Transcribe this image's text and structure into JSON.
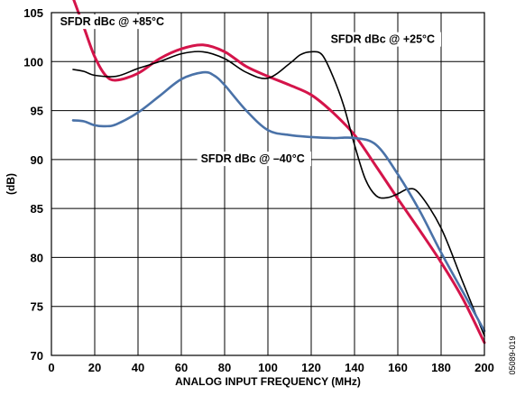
{
  "figure_id": "05089-019",
  "chart_data": {
    "type": "line",
    "xlabel": "ANALOG INPUT FREQUENCY (MHz)",
    "ylabel": "(dB)",
    "xlim": [
      0,
      200
    ],
    "ylim": [
      70,
      105
    ],
    "xticks": [
      0,
      20,
      40,
      60,
      80,
      100,
      120,
      140,
      160,
      180,
      200
    ],
    "yticks": [
      70,
      75,
      80,
      85,
      90,
      95,
      100,
      105
    ],
    "grid": true,
    "series": [
      {
        "name": "SFDR dBc @ +85°C",
        "color": "#d4144a",
        "points": [
          [
            10,
            106.5
          ],
          [
            15,
            103.5
          ],
          [
            20,
            100.5
          ],
          [
            25,
            98.6
          ],
          [
            30,
            98.1
          ],
          [
            40,
            98.8
          ],
          [
            50,
            100.3
          ],
          [
            60,
            101.3
          ],
          [
            70,
            101.7
          ],
          [
            80,
            101.0
          ],
          [
            90,
            99.5
          ],
          [
            100,
            98.5
          ],
          [
            110,
            97.6
          ],
          [
            120,
            96.6
          ],
          [
            130,
            94.8
          ],
          [
            140,
            92.5
          ],
          [
            150,
            89.3
          ],
          [
            160,
            86.0
          ],
          [
            170,
            82.8
          ],
          [
            180,
            79.5
          ],
          [
            190,
            75.8
          ],
          [
            200,
            71.3
          ]
        ]
      },
      {
        "name": "SFDR dBc @ +25°C",
        "color": "#000000",
        "points": [
          [
            10,
            99.2
          ],
          [
            15,
            99.0
          ],
          [
            20,
            98.6
          ],
          [
            30,
            98.5
          ],
          [
            40,
            99.3
          ],
          [
            50,
            100.0
          ],
          [
            60,
            100.8
          ],
          [
            70,
            101.0
          ],
          [
            80,
            100.3
          ],
          [
            90,
            98.9
          ],
          [
            100,
            98.3
          ],
          [
            110,
            99.8
          ],
          [
            115,
            100.7
          ],
          [
            120,
            101.0
          ],
          [
            125,
            100.7
          ],
          [
            130,
            98.5
          ],
          [
            135,
            95.5
          ],
          [
            140,
            91.5
          ],
          [
            145,
            88.0
          ],
          [
            150,
            86.3
          ],
          [
            155,
            86.1
          ],
          [
            160,
            86.5
          ],
          [
            165,
            87.0
          ],
          [
            170,
            86.5
          ],
          [
            180,
            83.0
          ],
          [
            190,
            77.5
          ],
          [
            200,
            72.0
          ]
        ]
      },
      {
        "name": "SFDR dBc @ –40°C",
        "color": "#4a72a8",
        "points": [
          [
            10,
            94.0
          ],
          [
            15,
            93.9
          ],
          [
            20,
            93.5
          ],
          [
            25,
            93.4
          ],
          [
            30,
            93.6
          ],
          [
            40,
            94.8
          ],
          [
            50,
            96.5
          ],
          [
            60,
            98.2
          ],
          [
            70,
            98.9
          ],
          [
            75,
            98.6
          ],
          [
            80,
            97.6
          ],
          [
            90,
            95.0
          ],
          [
            100,
            93.0
          ],
          [
            110,
            92.5
          ],
          [
            120,
            92.3
          ],
          [
            130,
            92.2
          ],
          [
            140,
            92.2
          ],
          [
            150,
            91.5
          ],
          [
            160,
            88.5
          ],
          [
            170,
            84.8
          ],
          [
            180,
            80.5
          ],
          [
            190,
            76.5
          ],
          [
            200,
            72.5
          ]
        ]
      }
    ],
    "annotations": [
      {
        "series": 0,
        "text": "SFDR dBc @ +85°C",
        "x": 4,
        "y": 103.7
      },
      {
        "series": 1,
        "text": "SFDR dBc @ +25°C",
        "x": 129,
        "y": 101.9
      },
      {
        "series": 2,
        "text": "SFDR dBc @ –40°C",
        "x": 69,
        "y": 89.7
      }
    ]
  }
}
